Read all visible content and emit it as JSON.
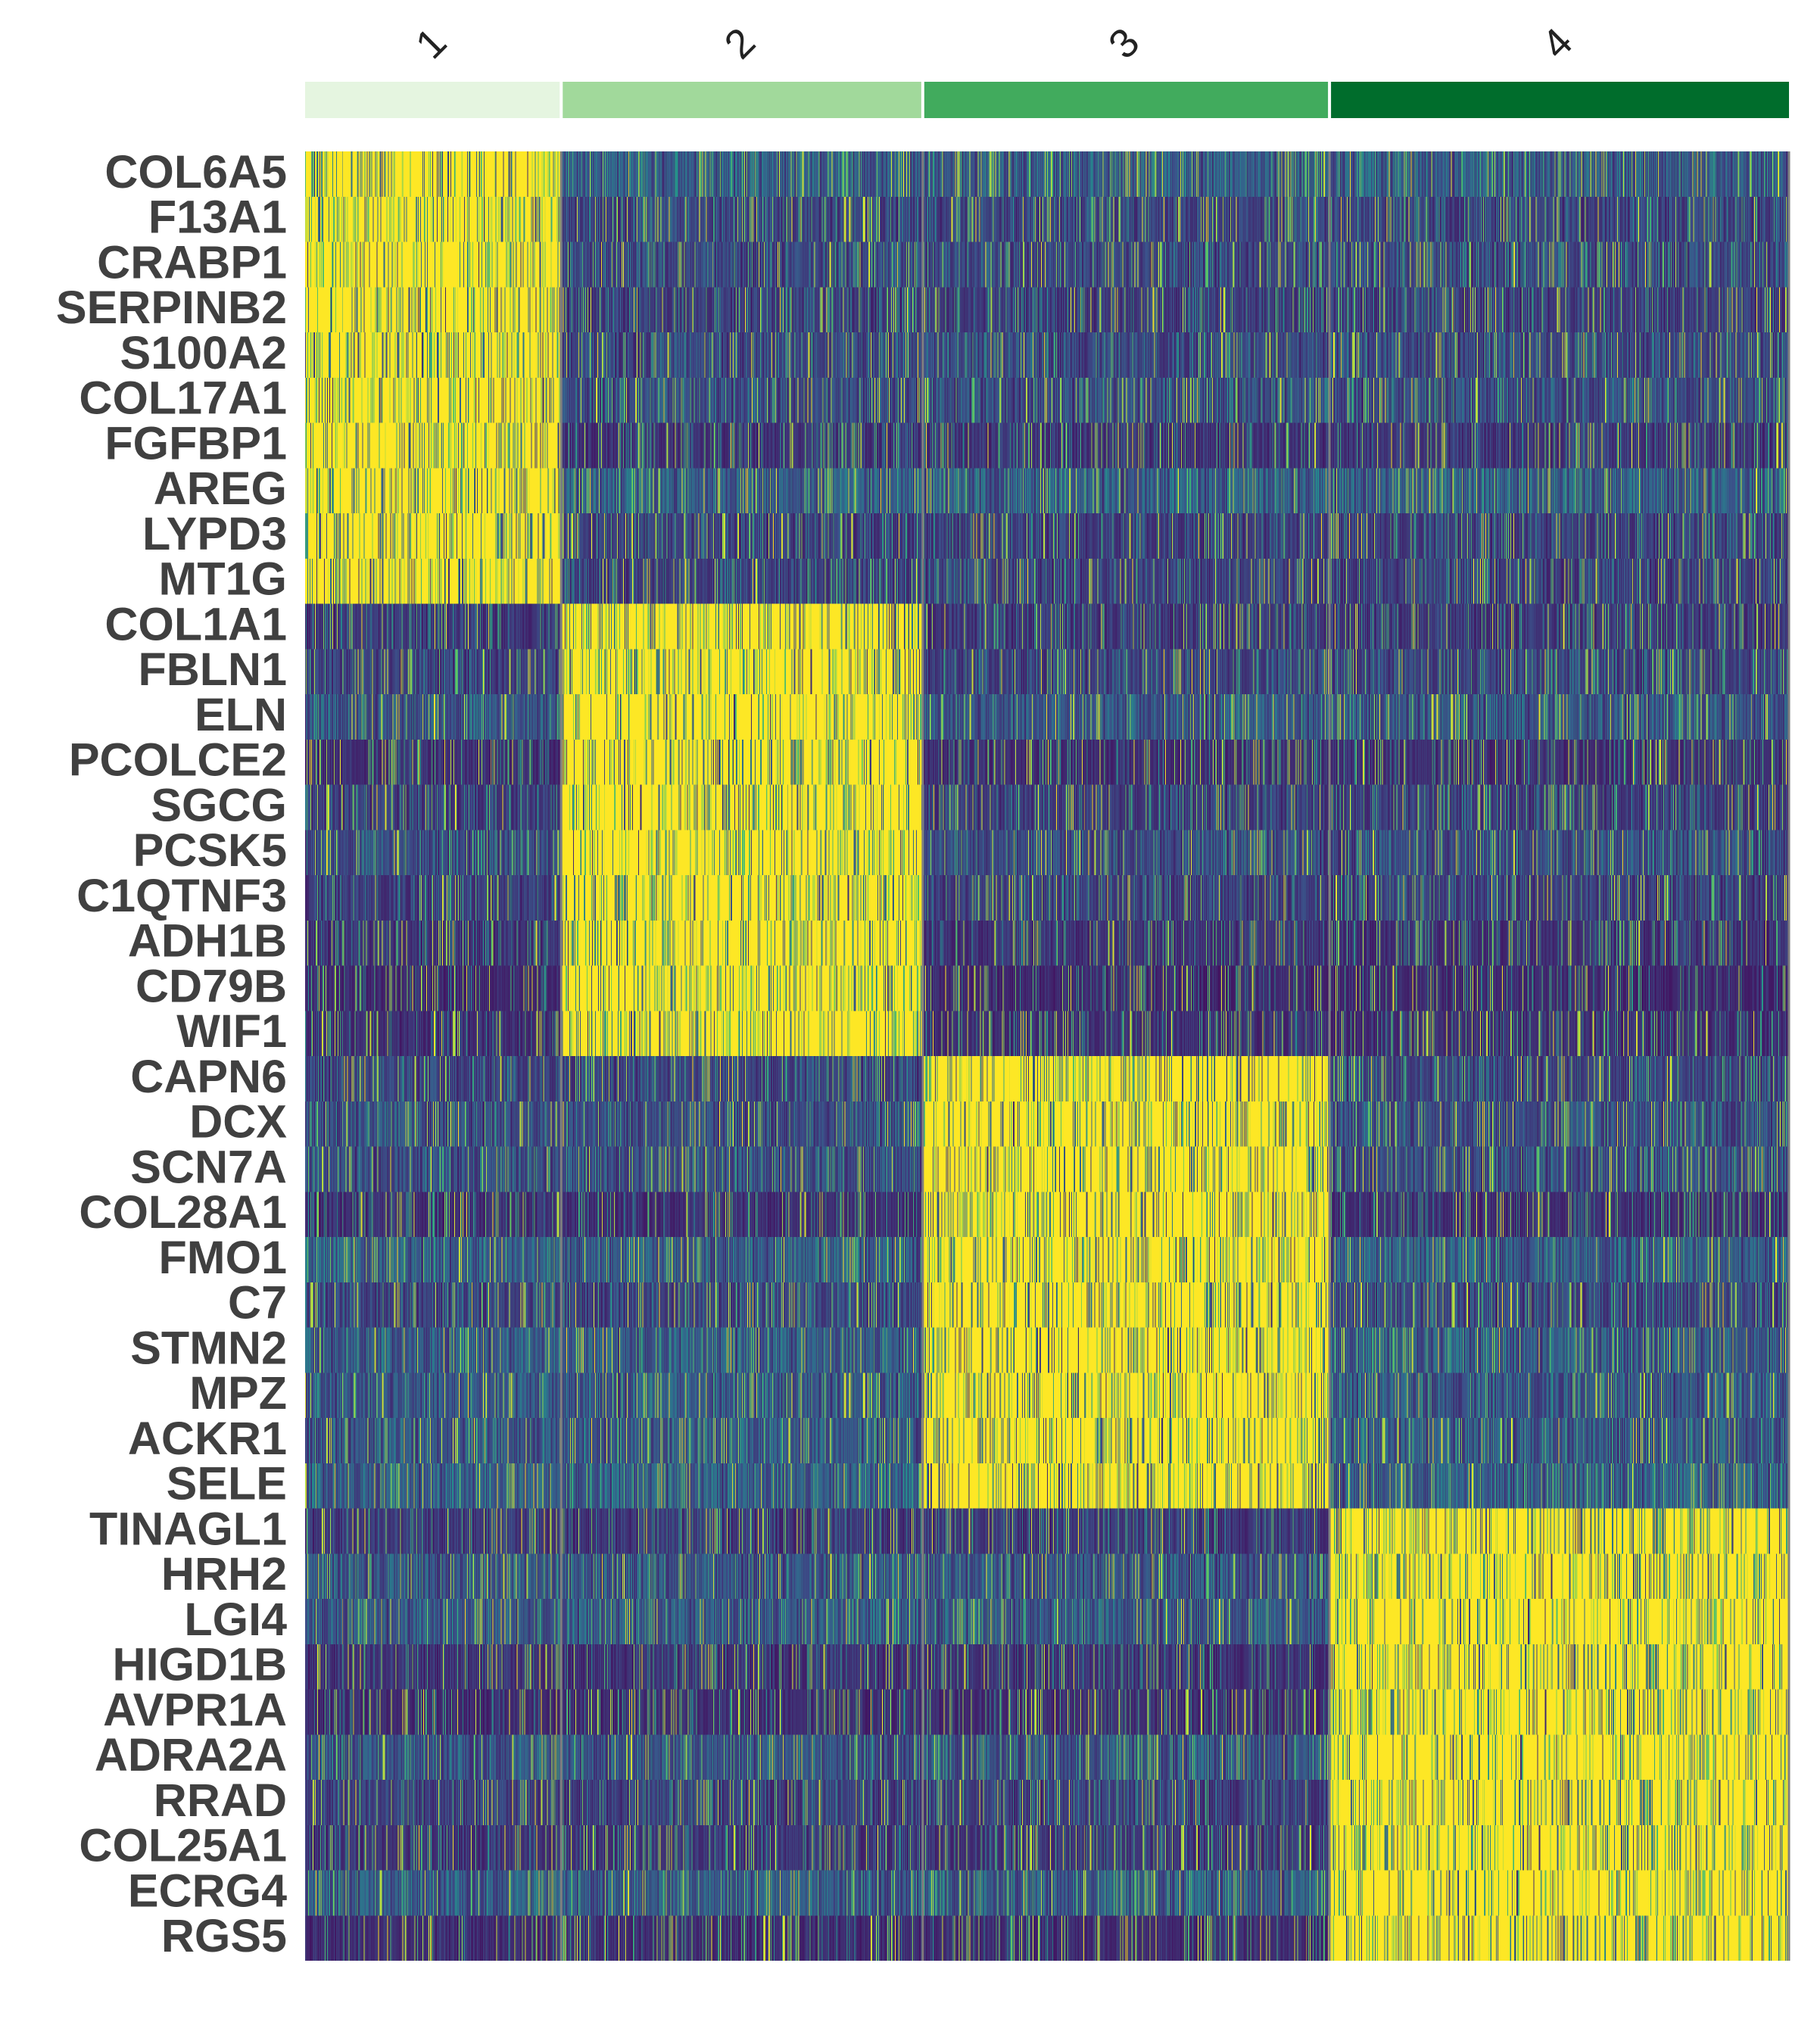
{
  "chart_data": {
    "type": "heatmap",
    "title": "",
    "xlabel": "",
    "ylabel": "",
    "colormap": "viridis",
    "colormap_stops": [
      "#440154",
      "#3b528b",
      "#21918c",
      "#5ec962",
      "#fde725"
    ],
    "column_groups": [
      {
        "label": "1",
        "color": "#e5f5e0",
        "cells": 340
      },
      {
        "label": "2",
        "color": "#a1d99b",
        "cells": 480
      },
      {
        "label": "3",
        "color": "#41ab5d",
        "cells": 540
      },
      {
        "label": "4",
        "color": "#006d2c",
        "cells": 610
      }
    ],
    "rows": [
      {
        "gene": "COL6A5",
        "high_in": "1"
      },
      {
        "gene": "F13A1",
        "high_in": "1"
      },
      {
        "gene": "CRABP1",
        "high_in": "1"
      },
      {
        "gene": "SERPINB2",
        "high_in": "1"
      },
      {
        "gene": "S100A2",
        "high_in": "1"
      },
      {
        "gene": "COL17A1",
        "high_in": "1"
      },
      {
        "gene": "FGFBP1",
        "high_in": "1"
      },
      {
        "gene": "AREG",
        "high_in": "1"
      },
      {
        "gene": "LYPD3",
        "high_in": "1"
      },
      {
        "gene": "MT1G",
        "high_in": "1"
      },
      {
        "gene": "COL1A1",
        "high_in": "2"
      },
      {
        "gene": "FBLN1",
        "high_in": "2"
      },
      {
        "gene": "ELN",
        "high_in": "2"
      },
      {
        "gene": "PCOLCE2",
        "high_in": "2"
      },
      {
        "gene": "SGCG",
        "high_in": "2"
      },
      {
        "gene": "PCSK5",
        "high_in": "2"
      },
      {
        "gene": "C1QTNF3",
        "high_in": "2"
      },
      {
        "gene": "ADH1B",
        "high_in": "2"
      },
      {
        "gene": "CD79B",
        "high_in": "2"
      },
      {
        "gene": "WIF1",
        "high_in": "2"
      },
      {
        "gene": "CAPN6",
        "high_in": "3"
      },
      {
        "gene": "DCX",
        "high_in": "3"
      },
      {
        "gene": "SCN7A",
        "high_in": "3"
      },
      {
        "gene": "COL28A1",
        "high_in": "3"
      },
      {
        "gene": "FMO1",
        "high_in": "3"
      },
      {
        "gene": "C7",
        "high_in": "3"
      },
      {
        "gene": "STMN2",
        "high_in": "3"
      },
      {
        "gene": "MPZ",
        "high_in": "3"
      },
      {
        "gene": "ACKR1",
        "high_in": "3"
      },
      {
        "gene": "SELE",
        "high_in": "3"
      },
      {
        "gene": "TINAGL1",
        "high_in": "4"
      },
      {
        "gene": "HRH2",
        "high_in": "4"
      },
      {
        "gene": "LGI4",
        "high_in": "4"
      },
      {
        "gene": "HIGD1B",
        "high_in": "4"
      },
      {
        "gene": "AVPR1A",
        "high_in": "4"
      },
      {
        "gene": "ADRA2A",
        "high_in": "4"
      },
      {
        "gene": "RRAD",
        "high_in": "4"
      },
      {
        "gene": "COL25A1",
        "high_in": "4"
      },
      {
        "gene": "ECRG4",
        "high_in": "4"
      },
      {
        "gene": "RGS5",
        "high_in": "4"
      }
    ],
    "legend": "none",
    "grid": false
  }
}
